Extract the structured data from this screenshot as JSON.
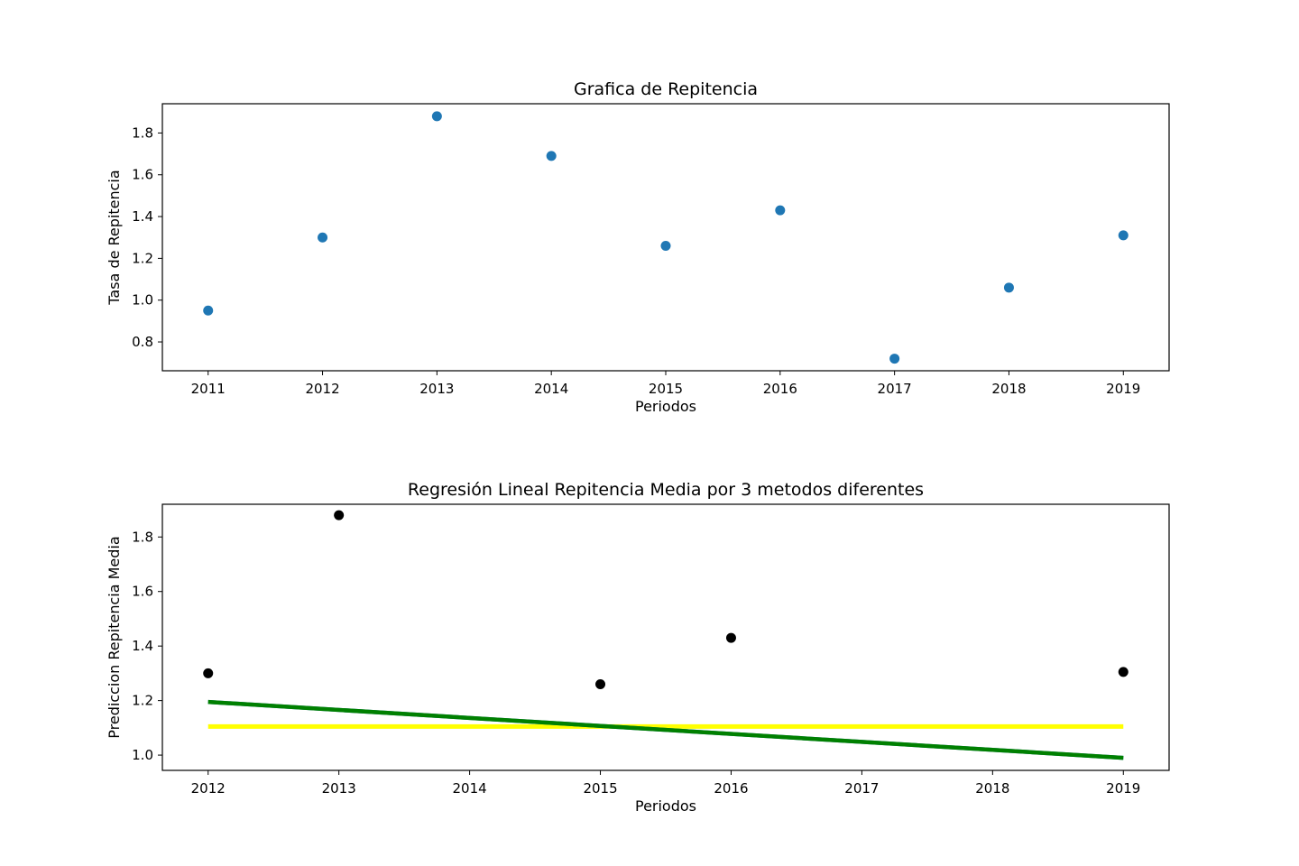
{
  "chart_data": [
    {
      "type": "scatter",
      "title": "Grafica de Repitencia",
      "xlabel": "Periodos",
      "ylabel": "Tasa de Repitencia",
      "xlim": [
        2010.6,
        2019.4
      ],
      "ylim": [
        0.662,
        1.94
      ],
      "xticks": [
        2011,
        2012,
        2013,
        2014,
        2015,
        2016,
        2017,
        2018,
        2019
      ],
      "yticks": [
        0.8,
        1.0,
        1.2,
        1.4,
        1.6,
        1.8
      ],
      "grid": false,
      "series": [
        {
          "color": "#1f77b4",
          "x": [
            2011,
            2012,
            2013,
            2014,
            2015,
            2016,
            2017,
            2018,
            2019
          ],
          "y": [
            0.95,
            1.3,
            1.88,
            1.69,
            1.26,
            1.43,
            0.72,
            1.06,
            1.31
          ]
        }
      ]
    },
    {
      "type": "scatter",
      "title": "Regresión Lineal Repitencia Media por 3 metodos diferentes",
      "xlabel": "Periodos",
      "ylabel": "Prediccion Repitencia Media",
      "xlim": [
        2011.65,
        2019.35
      ],
      "ylim": [
        0.944,
        1.92
      ],
      "xticks": [
        2012,
        2013,
        2014,
        2015,
        2016,
        2017,
        2018,
        2019
      ],
      "yticks": [
        1.0,
        1.2,
        1.4,
        1.6,
        1.8
      ],
      "grid": false,
      "series": [
        {
          "color": "#000000",
          "x": [
            2012,
            2013,
            2015,
            2016,
            2019
          ],
          "y": [
            1.3,
            1.88,
            1.26,
            1.43,
            1.305
          ]
        }
      ],
      "lines": [
        {
          "color": "#ffff00",
          "x": [
            2012,
            2019
          ],
          "y": [
            1.105,
            1.105
          ]
        },
        {
          "color": "#1f77b4",
          "x": [
            2012,
            2019
          ],
          "y": [
            1.195,
            0.99
          ]
        },
        {
          "color": "#008000",
          "x": [
            2012,
            2019
          ],
          "y": [
            1.195,
            0.99
          ]
        }
      ]
    }
  ]
}
